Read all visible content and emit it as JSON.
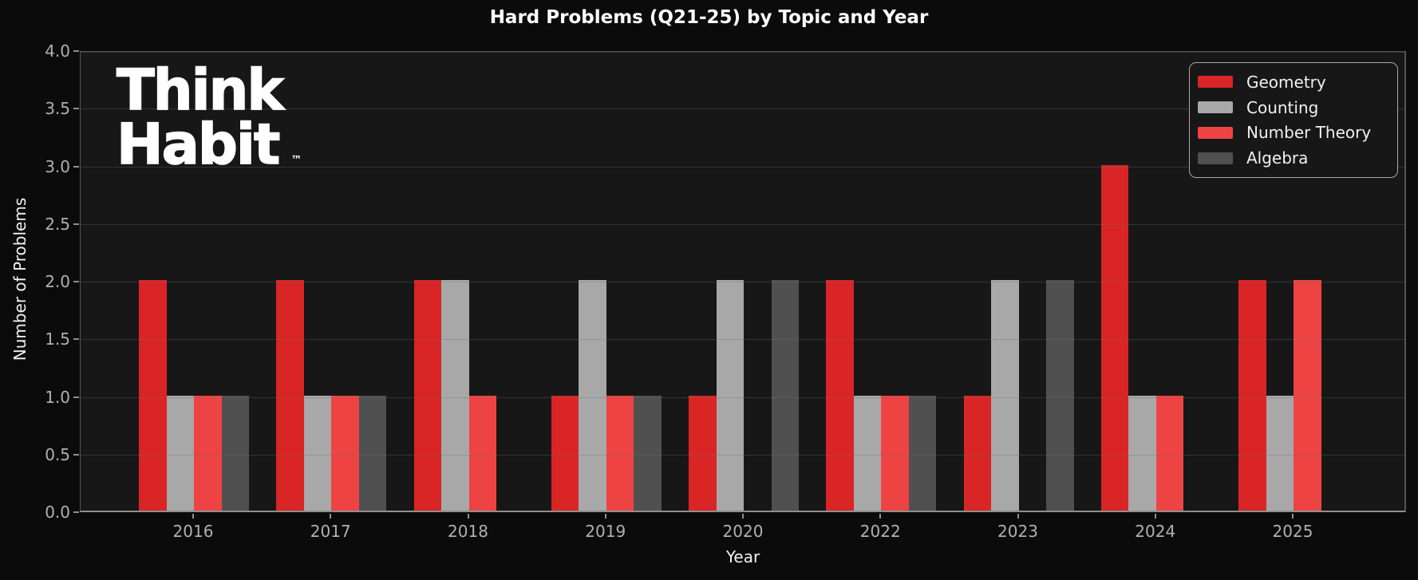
{
  "title": "Hard Problems (Q21-25) by Topic and Year",
  "logo": {
    "line1": "Think",
    "line2": "Habit",
    "tm": "™"
  },
  "chart_data": {
    "type": "bar",
    "title": "Hard Problems (Q21-25) by Topic and Year",
    "xlabel": "Year",
    "ylabel": "Number of Problems",
    "categories": [
      "2016",
      "2017",
      "2018",
      "2019",
      "2020",
      "2022",
      "2023",
      "2024",
      "2025"
    ],
    "series": [
      {
        "name": "Geometry",
        "color": "#d92525",
        "values": [
          2,
          2,
          2,
          1,
          1,
          2,
          1,
          3,
          2
        ]
      },
      {
        "name": "Counting",
        "color": "#a8a8a8",
        "values": [
          1,
          1,
          2,
          2,
          2,
          1,
          2,
          1,
          1
        ]
      },
      {
        "name": "Number Theory",
        "color": "#ee4343",
        "values": [
          1,
          1,
          1,
          1,
          0,
          1,
          0,
          1,
          2
        ]
      },
      {
        "name": "Algebra",
        "color": "#505050",
        "values": [
          1,
          1,
          0,
          1,
          2,
          1,
          2,
          0,
          0
        ]
      }
    ],
    "ylim": [
      0,
      4
    ],
    "ytick_step": 0.5,
    "yticks": [
      "0.0",
      "0.5",
      "1.0",
      "1.5",
      "2.0",
      "2.5",
      "3.0",
      "3.5",
      "4.0"
    ],
    "grid": true,
    "legend_position": "upper right"
  },
  "colors": {
    "figure_bg": "#0b0b0b",
    "axes_bg": "#171717",
    "grid": "#6e6e6e",
    "tick_label": "#b0b0b0",
    "spine": "#555555",
    "bottom_spine": "#8f8f8f",
    "text": "#f2f2f2",
    "legend_border": "#a8a8a8"
  }
}
